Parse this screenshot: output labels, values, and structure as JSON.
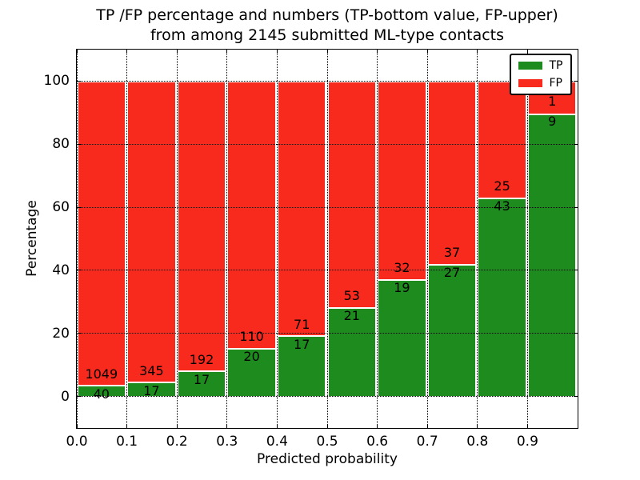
{
  "chart_data": {
    "type": "bar",
    "stacked": true,
    "normalized_to_percent": true,
    "title": "TP /FP percentage and numbers (TP-bottom value, FP-upper) from among 2145 submitted ML-type contacts",
    "title_lines": [
      "TP /FP percentage and numbers (TP-bottom value, FP-upper)",
      "from among 2145 submitted ML-type contacts"
    ],
    "xlabel": "Predicted probability",
    "ylabel": "Percentage",
    "total_contacts": 2145,
    "xlim": [
      0.0,
      1.0
    ],
    "ylim": [
      -10,
      110
    ],
    "bin_edges": [
      0.0,
      0.1,
      0.2,
      0.3,
      0.4,
      0.5,
      0.6,
      0.7,
      0.8,
      0.9,
      1.0
    ],
    "xtick_labels": [
      "0.0",
      "0.1",
      "0.2",
      "0.3",
      "0.4",
      "0.5",
      "0.6",
      "0.7",
      "0.8",
      "0.9"
    ],
    "ytick_values": [
      0,
      20,
      40,
      60,
      80,
      100
    ],
    "grid": {
      "style": "dotted",
      "color": "#000000",
      "above_bars": true
    },
    "legend_position": "upper right",
    "series": [
      {
        "name": "TP",
        "color": "#1e8b1e",
        "counts": [
          40,
          17,
          17,
          20,
          17,
          21,
          19,
          27,
          43,
          9
        ]
      },
      {
        "name": "FP",
        "color": "#f8291d",
        "counts": [
          1049,
          345,
          192,
          110,
          71,
          53,
          32,
          37,
          25,
          1
        ]
      }
    ],
    "tp_percent_by_bin": [
      3.7,
      4.7,
      8.1,
      15.4,
      19.3,
      28.4,
      37.3,
      42.2,
      63.2,
      90.0
    ],
    "colors": {
      "background": "#ffffff",
      "text": "#000000",
      "bar_edge": "#ffffff"
    }
  }
}
